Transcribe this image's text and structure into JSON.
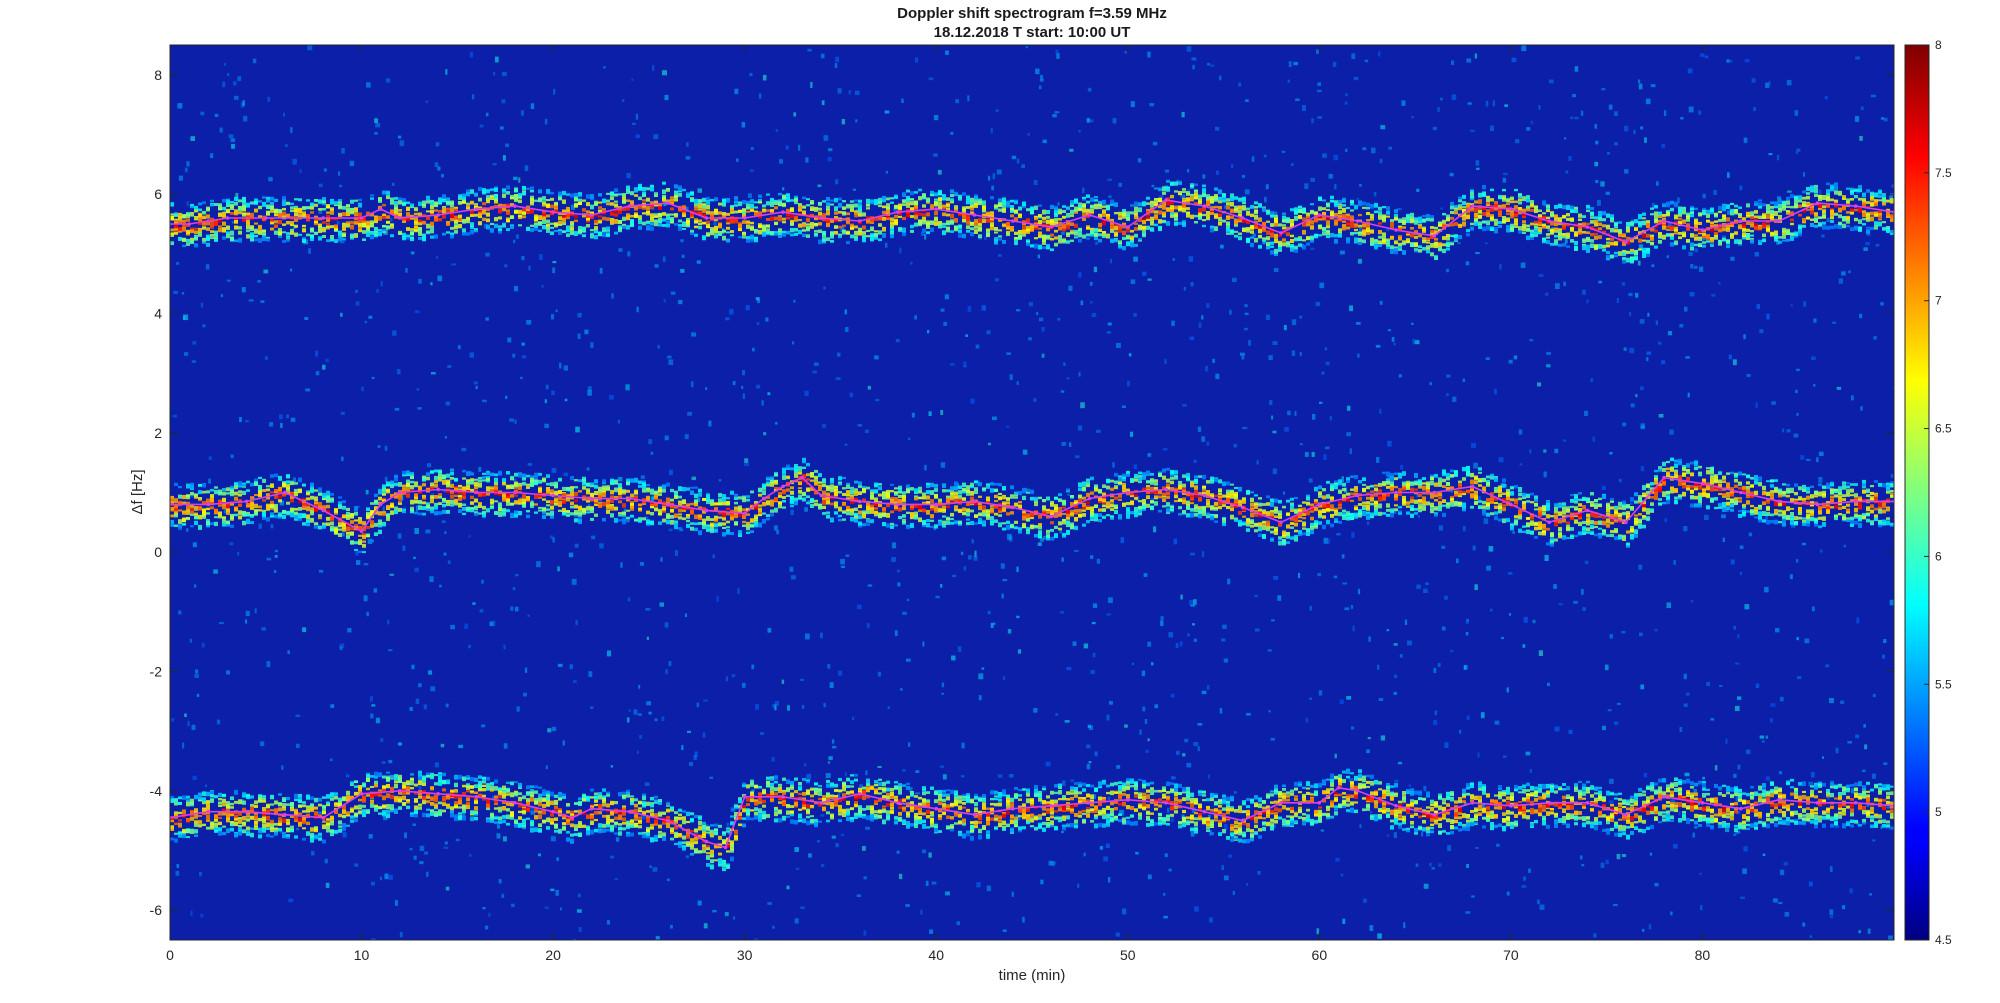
{
  "chart_data": {
    "type": "heatmap",
    "title": "Doppler shift spectrogram f=3.59 MHz",
    "subtitle": "18.12.2018   T start: 10:00 UT",
    "xlabel": "time (min)",
    "ylabel": "Δf [Hz]",
    "xlim": [
      0,
      90
    ],
    "ylim": [
      -6.5,
      8.5
    ],
    "xticks": [
      "0",
      "10",
      "20",
      "30",
      "40",
      "50",
      "60",
      "70",
      "80"
    ],
    "xtick_values": [
      0,
      10,
      20,
      30,
      40,
      50,
      60,
      70,
      80
    ],
    "yticks": [
      "8",
      "6",
      "4",
      "2",
      "0",
      "-2",
      "-4",
      "-6"
    ],
    "ytick_values": [
      8,
      6,
      4,
      2,
      0,
      -2,
      -4,
      -6
    ],
    "colormap": "jet",
    "clim": [
      4.5,
      8
    ],
    "colorbar_ticks": [
      "8",
      "7.5",
      "7",
      "6.5",
      "6",
      "5.5",
      "5",
      "4.5"
    ],
    "colorbar_tick_values": [
      8,
      7.5,
      7,
      6.5,
      6,
      5.5,
      5,
      4.5
    ],
    "background_color": "#0c1fa8",
    "trace_color": "#e040e0",
    "series": [
      {
        "x": [
          0,
          1,
          2,
          3,
          5,
          8,
          10,
          11,
          12,
          14,
          16,
          18,
          20,
          22,
          24,
          26,
          28,
          30,
          32,
          34,
          36,
          38,
          40,
          42,
          44,
          46,
          48,
          50,
          52,
          54,
          56,
          58,
          60,
          62,
          64,
          66,
          68,
          70,
          72,
          74,
          76,
          78,
          80,
          82,
          84,
          86,
          88,
          90
        ],
        "y": [
          5.5,
          5.5,
          5.55,
          5.6,
          5.6,
          5.6,
          5.6,
          5.75,
          5.6,
          5.65,
          5.75,
          5.8,
          5.7,
          5.65,
          5.8,
          5.85,
          5.6,
          5.6,
          5.7,
          5.6,
          5.55,
          5.7,
          5.75,
          5.65,
          5.55,
          5.45,
          5.65,
          5.45,
          5.9,
          5.8,
          5.6,
          5.35,
          5.65,
          5.55,
          5.4,
          5.3,
          5.8,
          5.75,
          5.55,
          5.45,
          5.2,
          5.55,
          5.4,
          5.55,
          5.55,
          5.85,
          5.8,
          5.7
        ]
      },
      {
        "x": [
          0,
          2,
          4,
          6,
          8,
          10,
          11,
          12,
          14,
          16,
          18,
          20,
          22,
          24,
          26,
          28,
          30,
          31,
          32,
          33,
          34,
          36,
          38,
          40,
          42,
          44,
          46,
          48,
          50,
          52,
          54,
          56,
          58,
          60,
          62,
          64,
          66,
          68,
          70,
          72,
          74,
          76,
          78,
          80,
          82,
          84,
          86,
          88,
          90
        ],
        "y": [
          0.8,
          0.8,
          0.85,
          1.0,
          0.7,
          0.35,
          0.8,
          1.0,
          1.05,
          1.0,
          1.0,
          0.95,
          0.9,
          0.9,
          0.8,
          0.7,
          0.65,
          0.9,
          1.1,
          1.25,
          0.95,
          0.85,
          0.8,
          0.8,
          0.85,
          0.75,
          0.6,
          0.9,
          1.0,
          1.05,
          0.95,
          0.75,
          0.5,
          0.8,
          0.95,
          1.0,
          1.0,
          1.1,
          0.8,
          0.5,
          0.7,
          0.5,
          1.25,
          1.15,
          1.0,
          0.85,
          0.8,
          0.85,
          0.85
        ]
      },
      {
        "x": [
          0,
          2,
          4,
          6,
          8,
          10,
          12,
          14,
          16,
          18,
          20,
          21,
          22,
          24,
          26,
          28,
          29,
          30,
          32,
          34,
          36,
          38,
          40,
          42,
          44,
          46,
          48,
          50,
          52,
          54,
          56,
          58,
          60,
          61,
          62,
          64,
          66,
          68,
          70,
          72,
          74,
          76,
          78,
          80,
          82,
          84,
          86,
          88,
          90
        ],
        "y": [
          -4.45,
          -4.35,
          -4.35,
          -4.4,
          -4.45,
          -4.05,
          -4.0,
          -4.05,
          -4.1,
          -4.2,
          -4.35,
          -4.45,
          -4.3,
          -4.35,
          -4.5,
          -4.85,
          -4.95,
          -4.1,
          -4.1,
          -4.2,
          -4.05,
          -4.2,
          -4.3,
          -4.4,
          -4.3,
          -4.25,
          -4.2,
          -4.15,
          -4.2,
          -4.35,
          -4.5,
          -4.2,
          -4.2,
          -3.95,
          -4.0,
          -4.25,
          -4.4,
          -4.2,
          -4.25,
          -4.2,
          -4.2,
          -4.4,
          -4.1,
          -4.2,
          -4.3,
          -4.15,
          -4.2,
          -4.2,
          -4.25
        ]
      }
    ]
  }
}
